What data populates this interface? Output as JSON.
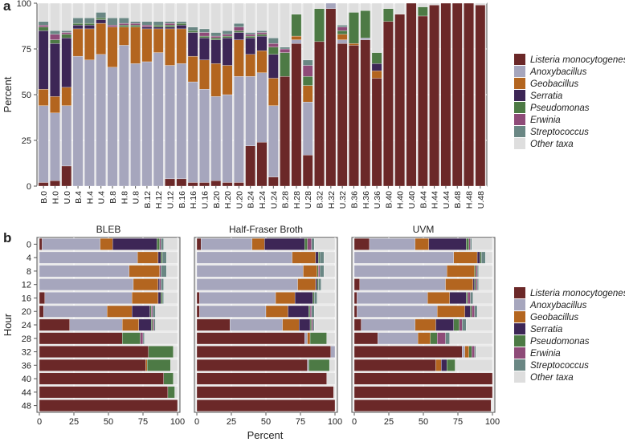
{
  "chart_data": [
    {
      "panel": "a",
      "type": "bar",
      "stacked": true,
      "orientation": "vertical",
      "ylabel": "Percent",
      "ylim": [
        0,
        100
      ],
      "yticks": [
        "0",
        "25",
        "50",
        "75",
        "100"
      ],
      "grid": true,
      "legend_position": "right",
      "categories": [
        "B.0",
        "H.0",
        "U.0",
        "B.4",
        "H.4",
        "U.4",
        "B.8",
        "H.8",
        "U.8",
        "B.12",
        "H.12",
        "U.12",
        "B.16",
        "H.16",
        "U.16",
        "B.20",
        "H.20",
        "U.20",
        "B.24",
        "H.24",
        "U.24",
        "B.28",
        "H.28",
        "U.28",
        "B.32",
        "H.32",
        "U.32",
        "B.36",
        "H.36",
        "U.36",
        "B.40",
        "H.40",
        "U.40",
        "B.44",
        "H.44",
        "U.44",
        "B.48",
        "H.48",
        "U.48"
      ],
      "series": [
        {
          "name": "Listeria monocytogenes",
          "color": "#6b2828",
          "values": [
            2,
            3,
            11,
            0,
            0,
            0,
            0,
            0,
            0,
            0,
            0,
            4,
            4,
            2,
            2,
            3,
            2,
            2,
            22,
            24,
            5,
            60,
            78,
            17,
            79,
            97,
            78,
            77,
            80,
            59,
            90,
            94,
            100,
            93,
            99,
            100,
            100,
            100,
            99
          ]
        },
        {
          "name": "Anoxybacillus",
          "color": "#a6a6bd",
          "values": [
            42,
            37,
            33,
            71,
            69,
            72,
            65,
            77,
            67,
            68,
            73,
            62,
            63,
            55,
            51,
            46,
            48,
            58,
            38,
            38,
            39,
            0,
            2,
            29,
            0,
            3,
            2,
            0,
            1,
            0,
            0,
            0,
            0,
            0,
            0,
            0,
            0,
            0,
            0
          ]
        },
        {
          "name": "Geobacillus",
          "color": "#b3651f",
          "values": [
            9,
            9,
            10,
            15,
            17,
            17,
            22,
            10,
            20,
            18,
            13,
            20,
            19,
            14,
            16,
            18,
            16,
            20,
            12,
            12,
            15,
            0,
            2,
            9,
            0,
            0,
            3,
            1,
            0,
            4,
            0,
            0,
            0,
            0,
            0,
            0,
            0,
            0,
            0
          ]
        },
        {
          "name": "Serratia",
          "color": "#3d2656",
          "values": [
            32,
            29,
            27,
            2,
            2,
            2,
            0,
            0,
            0,
            1,
            1,
            1,
            2,
            13,
            12,
            13,
            15,
            4,
            9,
            8,
            13,
            0,
            0,
            0,
            0,
            0,
            0,
            0,
            0,
            4,
            0,
            0,
            0,
            0,
            0,
            0,
            0,
            0,
            0
          ]
        },
        {
          "name": "Pseudomonas",
          "color": "#4d7a45",
          "values": [
            2,
            2,
            2,
            1,
            1,
            1,
            0,
            1,
            1,
            0,
            1,
            1,
            1,
            1,
            1,
            1,
            1,
            1,
            1,
            1,
            4,
            13,
            12,
            5,
            18,
            0,
            2,
            17,
            15,
            6,
            7,
            0,
            0,
            5,
            0,
            0,
            0,
            0,
            0
          ]
        },
        {
          "name": "Erwinia",
          "color": "#8e4b78",
          "values": [
            1,
            3,
            1,
            0,
            0,
            0,
            1,
            1,
            1,
            1,
            0,
            1,
            0,
            0,
            2,
            1,
            1,
            2,
            1,
            1,
            2,
            2,
            0,
            6,
            0,
            0,
            2,
            0,
            0,
            0,
            0,
            0,
            0,
            0,
            0,
            0,
            0,
            0,
            0
          ]
        },
        {
          "name": "Streptococcus",
          "color": "#6a8784",
          "values": [
            2,
            2,
            1,
            3,
            3,
            3,
            4,
            3,
            1,
            2,
            2,
            1,
            1,
            2,
            2,
            2,
            2,
            2,
            1,
            1,
            3,
            1,
            0,
            3,
            0,
            0,
            1,
            0,
            0,
            0,
            0,
            0,
            0,
            0,
            0,
            0,
            0,
            0,
            0
          ]
        },
        {
          "name": "Other taxa",
          "color": "#dedede",
          "values": [
            10,
            15,
            15,
            8,
            8,
            5,
            8,
            8,
            10,
            10,
            10,
            10,
            10,
            13,
            14,
            16,
            15,
            11,
            16,
            15,
            19,
            24,
            6,
            31,
            3,
            0,
            12,
            5,
            4,
            27,
            3,
            6,
            0,
            2,
            1,
            0,
            0,
            0,
            1
          ]
        }
      ]
    },
    {
      "panel": "b",
      "type": "bar",
      "stacked": true,
      "orientation": "horizontal",
      "xlabel": "Percent",
      "ylabel": "Hour",
      "xlim": [
        0,
        100
      ],
      "xticks": [
        "0",
        "25",
        "50",
        "75",
        "100"
      ],
      "grid": true,
      "legend_position": "right",
      "hours": [
        "0",
        "4",
        "8",
        "12",
        "16",
        "20",
        "24",
        "28",
        "32",
        "36",
        "40",
        "44",
        "48"
      ],
      "facets": [
        {
          "title": "BLEB",
          "values": [
            [
              2,
              42,
              9,
              32,
              2,
              1,
              2,
              10
            ],
            [
              0,
              71,
              15,
              2,
              1,
              0,
              3,
              8
            ],
            [
              0,
              65,
              22,
              0,
              0,
              1,
              4,
              8
            ],
            [
              0,
              68,
              18,
              1,
              0,
              1,
              2,
              10
            ],
            [
              4,
              63,
              19,
              2,
              1,
              0,
              1,
              10
            ],
            [
              3,
              46,
              18,
              13,
              1,
              1,
              2,
              16
            ],
            [
              22,
              38,
              12,
              9,
              1,
              1,
              1,
              16
            ],
            [
              60,
              0,
              0,
              0,
              13,
              2,
              1,
              24
            ],
            [
              79,
              0,
              0,
              0,
              18,
              0,
              0,
              3
            ],
            [
              77,
              0,
              1,
              0,
              17,
              0,
              0,
              5
            ],
            [
              90,
              0,
              0,
              0,
              7,
              0,
              0,
              3
            ],
            [
              93,
              0,
              0,
              0,
              5,
              0,
              0,
              2
            ],
            [
              100,
              0,
              0,
              0,
              0,
              0,
              0,
              0
            ]
          ]
        },
        {
          "title": "Half-Fraser Broth",
          "values": [
            [
              3,
              37,
              9,
              29,
              2,
              3,
              2,
              15
            ],
            [
              0,
              69,
              17,
              2,
              1,
              0,
              3,
              8
            ],
            [
              0,
              77,
              10,
              0,
              1,
              1,
              3,
              8
            ],
            [
              0,
              73,
              13,
              1,
              1,
              0,
              2,
              10
            ],
            [
              2,
              55,
              14,
              13,
              1,
              0,
              2,
              13
            ],
            [
              2,
              48,
              16,
              15,
              1,
              1,
              2,
              15
            ],
            [
              24,
              38,
              12,
              8,
              1,
              1,
              1,
              15
            ],
            [
              78,
              2,
              2,
              0,
              12,
              0,
              0,
              6
            ],
            [
              97,
              3,
              0,
              0,
              0,
              0,
              0,
              0
            ],
            [
              80,
              1,
              0,
              0,
              15,
              0,
              0,
              4
            ],
            [
              94,
              0,
              0,
              0,
              0,
              0,
              0,
              6
            ],
            [
              99,
              0,
              0,
              0,
              0,
              0,
              0,
              1
            ],
            [
              100,
              0,
              0,
              0,
              0,
              0,
              0,
              0
            ]
          ]
        },
        {
          "title": "UVM",
          "values": [
            [
              11,
              33,
              10,
              27,
              2,
              1,
              1,
              15
            ],
            [
              0,
              72,
              17,
              2,
              1,
              0,
              3,
              5
            ],
            [
              0,
              67,
              20,
              0,
              1,
              1,
              1,
              10
            ],
            [
              4,
              62,
              20,
              1,
              1,
              1,
              1,
              10
            ],
            [
              2,
              51,
              16,
              12,
              1,
              2,
              2,
              14
            ],
            [
              2,
              58,
              20,
              4,
              1,
              2,
              2,
              11
            ],
            [
              5,
              39,
              15,
              13,
              4,
              2,
              3,
              19
            ],
            [
              17,
              29,
              9,
              0,
              5,
              6,
              3,
              31
            ],
            [
              78,
              2,
              3,
              0,
              2,
              2,
              1,
              12
            ],
            [
              59,
              0,
              4,
              4,
              6,
              0,
              0,
              27
            ],
            [
              100,
              0,
              0,
              0,
              0,
              0,
              0,
              0
            ],
            [
              100,
              0,
              0,
              0,
              0,
              0,
              0,
              0
            ],
            [
              99,
              0,
              0,
              0,
              0,
              0,
              0,
              1
            ]
          ]
        }
      ],
      "series_names": [
        "Listeria monocytogenes",
        "Anoxybacillus",
        "Geobacillus",
        "Serratia",
        "Pseudomonas",
        "Erwinia",
        "Streptococcus",
        "Other taxa"
      ]
    }
  ],
  "labels": {
    "panel_a": "a",
    "panel_b": "b"
  }
}
